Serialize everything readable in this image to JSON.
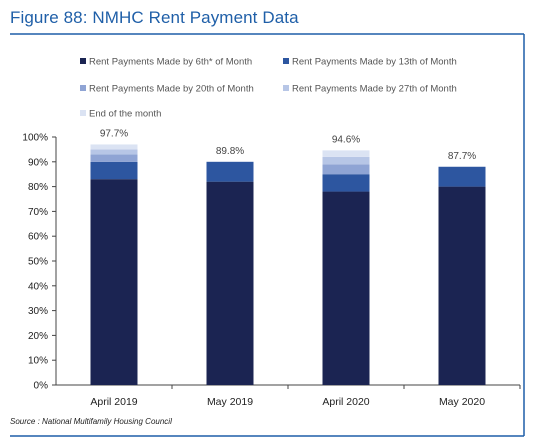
{
  "title": "Figure 88: NMHC Rent Payment Data",
  "source": "Source : National Multifamily Housing Council",
  "colors": {
    "title": "#1f5fa8",
    "rule": "#1f5fa8"
  },
  "chart_data": {
    "type": "bar",
    "stacked": true,
    "title": "",
    "xlabel": "",
    "ylabel": "",
    "ylim": [
      0,
      100
    ],
    "yticks": [
      "0%",
      "10%",
      "20%",
      "30%",
      "40%",
      "50%",
      "60%",
      "70%",
      "80%",
      "90%",
      "100%"
    ],
    "legend_position": "top",
    "categories": [
      "April 2019",
      "May 2019",
      "April 2020",
      "May 2020"
    ],
    "total_labels": [
      "97.7%",
      "89.8%",
      "94.6%",
      "87.7%"
    ],
    "series": [
      {
        "name": "Rent Payments Made by 6th* of Month",
        "color": "#1b2452",
        "values": [
          83,
          82,
          78,
          80
        ]
      },
      {
        "name": "Rent Payments Made by 13th of Month",
        "color": "#2d56a0",
        "values": [
          7,
          8,
          7,
          8
        ]
      },
      {
        "name": "Rent Payments Made by 20th of Month",
        "color": "#8fa4d4",
        "values": [
          3,
          0,
          4,
          0
        ]
      },
      {
        "name": "Rent Payments Made by 27th of Month",
        "color": "#b7c6e6",
        "values": [
          2,
          0,
          3,
          0
        ]
      },
      {
        "name": "End of the month",
        "color": "#dbe3f3",
        "values": [
          2,
          0,
          2.6,
          0
        ]
      }
    ]
  }
}
